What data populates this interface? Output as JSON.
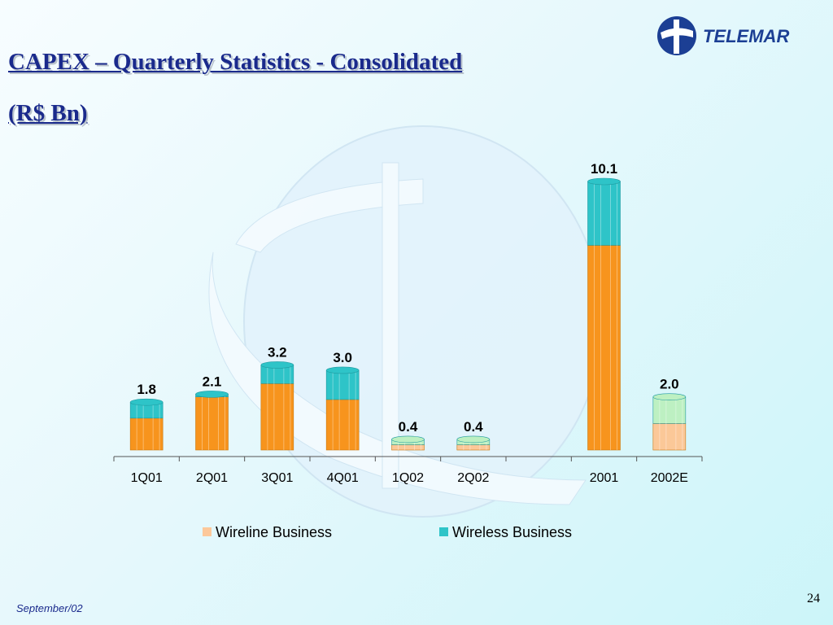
{
  "slide": {
    "title_line1": "CAPEX – Quarterly Statistics - Consolidated",
    "title_line2": "(R$ Bn)",
    "logo_text": "TELEMAR",
    "footer_date": "September/02",
    "page_number": "24"
  },
  "colors": {
    "title": "#1a2a8c",
    "wireline": "#f7941d",
    "wireless": "#2ec4c8",
    "wireline_light": "#fbc898",
    "wireless_light": "#bdf0c2",
    "legend_wireline": "#fcc89a",
    "legend_wireless": "#2ec4c8"
  },
  "chart_data": {
    "type": "bar",
    "stacked": true,
    "categories": [
      "1Q01",
      "2Q01",
      "3Q01",
      "4Q01",
      "1Q02",
      "2Q02",
      "",
      "2001",
      "2002E"
    ],
    "series": [
      {
        "name": "Wireline Business",
        "values": [
          1.2,
          2.0,
          2.5,
          1.9,
          0.2,
          0.2,
          null,
          7.7,
          1.0
        ]
      },
      {
        "name": "Wireless Business",
        "values": [
          0.6,
          0.1,
          0.7,
          1.1,
          0.2,
          0.2,
          null,
          2.4,
          1.0
        ]
      }
    ],
    "data_labels": [
      "1.8",
      "2.1",
      "3.2",
      "3.0",
      "0.4",
      "0.4",
      "",
      "10.1",
      "2.0"
    ],
    "highlight_light": [
      false,
      false,
      false,
      false,
      true,
      true,
      false,
      false,
      true
    ],
    "legend_position": "bottom",
    "ylim": [
      0,
      10.1
    ],
    "grid": false
  }
}
